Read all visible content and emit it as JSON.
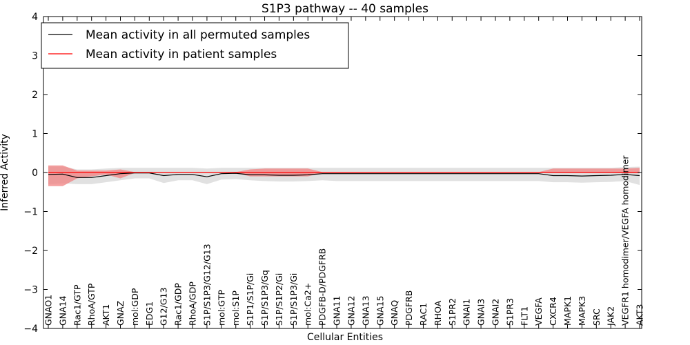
{
  "chart_data": {
    "type": "line",
    "title": "S1P3 pathway -- 40 samples",
    "xlabel": "Cellular Entities",
    "ylabel": "Inferred Activity",
    "ylim": [
      -4,
      4
    ],
    "yticks": [
      -4,
      -3,
      -2,
      -1,
      0,
      1,
      2,
      3,
      4
    ],
    "ytick_labels": [
      "−4",
      "−3",
      "−2",
      "−1",
      "0",
      "1",
      "2",
      "3",
      "4"
    ],
    "grid": false,
    "legend_position": "top-left",
    "categories": [
      "GNAO1",
      "GNA14",
      "Rac1/GTP",
      "RhoA/GTP",
      "AKT1",
      "GNAZ",
      "mol:GDP",
      "EDG1",
      "G12/G13",
      "Rac1/GDP",
      "RhoA/GDP",
      "S1P/S1P3/G12/G13",
      "mol:GTP",
      "mol:S1P",
      "S1P1/S1P/Gi",
      "S1P/S1P3/Gq",
      "S1P/S1P2/Gi",
      "S1P/S1P3/Gi",
      "mol:Ca2+",
      "PDGFB-D/PDGFRB",
      "GNA11",
      "GNA12",
      "GNA13",
      "GNA15",
      "GNAQ",
      "PDGFRB",
      "RAC1",
      "RHOA",
      "S1PR2",
      "GNAI1",
      "GNAI3",
      "GNAI2",
      "S1PR3",
      "FLT1",
      "VEGFA",
      "CXCR4",
      "MAPK1",
      "MAPK3",
      "SRC",
      "JAK2",
      "VEGFR1 homodimer/VEGFA homodimer",
      "AKT3"
    ],
    "series": [
      {
        "name": "Mean activity in all permuted samples",
        "color": "#000000",
        "band_color": "#d9d9d9",
        "values": [
          -0.05,
          -0.04,
          -0.13,
          -0.13,
          -0.08,
          -0.03,
          -0.01,
          -0.01,
          -0.08,
          -0.05,
          -0.05,
          -0.11,
          -0.03,
          -0.02,
          -0.06,
          -0.06,
          -0.07,
          -0.07,
          -0.06,
          -0.03,
          -0.03,
          -0.03,
          -0.03,
          -0.03,
          -0.03,
          -0.03,
          -0.03,
          -0.03,
          -0.03,
          -0.03,
          -0.03,
          -0.03,
          -0.03,
          -0.03,
          -0.03,
          -0.08,
          -0.08,
          -0.09,
          -0.08,
          -0.07,
          -0.05,
          -0.08
        ],
        "lower": [
          -0.3,
          -0.28,
          -0.3,
          -0.3,
          -0.25,
          -0.2,
          -0.15,
          -0.15,
          -0.27,
          -0.2,
          -0.2,
          -0.3,
          -0.18,
          -0.17,
          -0.2,
          -0.22,
          -0.23,
          -0.23,
          -0.22,
          -0.2,
          -0.22,
          -0.22,
          -0.22,
          -0.22,
          -0.22,
          -0.22,
          -0.22,
          -0.22,
          -0.22,
          -0.22,
          -0.22,
          -0.22,
          -0.22,
          -0.22,
          -0.22,
          -0.25,
          -0.25,
          -0.26,
          -0.25,
          -0.24,
          -0.22,
          -0.32
        ],
        "upper": [
          0.15,
          0.15,
          0.08,
          0.08,
          0.1,
          0.12,
          0.12,
          0.12,
          0.12,
          0.12,
          0.12,
          0.1,
          0.12,
          0.12,
          0.12,
          0.12,
          0.12,
          0.12,
          0.12,
          0.12,
          0.12,
          0.12,
          0.12,
          0.12,
          0.12,
          0.12,
          0.12,
          0.12,
          0.12,
          0.12,
          0.12,
          0.12,
          0.12,
          0.12,
          0.12,
          0.12,
          0.12,
          0.12,
          0.12,
          0.12,
          0.14,
          0.15
        ]
      },
      {
        "name": "Mean activity in patient samples",
        "color": "#ff0000",
        "band_color": "#f08080",
        "values": [
          0,
          0,
          0,
          0,
          0,
          0,
          0,
          0,
          0,
          0,
          0,
          0,
          0,
          0,
          0,
          0,
          0,
          0,
          0,
          0,
          0,
          0,
          0,
          0,
          0,
          0,
          0,
          0,
          0,
          0,
          0,
          0,
          0,
          0,
          0,
          0,
          0,
          0,
          0,
          0,
          0,
          0
        ],
        "lower": [
          -0.35,
          -0.35,
          -0.15,
          -0.1,
          -0.05,
          -0.15,
          -0.01,
          -0.01,
          -0.01,
          -0.01,
          -0.01,
          -0.01,
          -0.01,
          -0.01,
          -0.1,
          -0.1,
          -0.1,
          -0.1,
          -0.1,
          -0.01,
          -0.01,
          -0.01,
          -0.01,
          -0.01,
          -0.01,
          -0.01,
          -0.01,
          -0.01,
          -0.01,
          -0.01,
          -0.01,
          -0.01,
          -0.01,
          -0.01,
          -0.01,
          -0.01,
          -0.01,
          -0.01,
          -0.01,
          -0.01,
          -0.02,
          -0.02
        ],
        "upper": [
          0.18,
          0.18,
          0.05,
          0.05,
          0.05,
          0.08,
          0.01,
          0.01,
          0.01,
          0.01,
          0.01,
          0.01,
          0.01,
          0.01,
          0.08,
          0.1,
          0.1,
          0.1,
          0.1,
          0.01,
          0.01,
          0.01,
          0.01,
          0.01,
          0.01,
          0.01,
          0.01,
          0.01,
          0.01,
          0.01,
          0.01,
          0.01,
          0.01,
          0.01,
          0.01,
          0.1,
          0.1,
          0.1,
          0.1,
          0.1,
          0.1,
          0.12
        ]
      }
    ]
  }
}
